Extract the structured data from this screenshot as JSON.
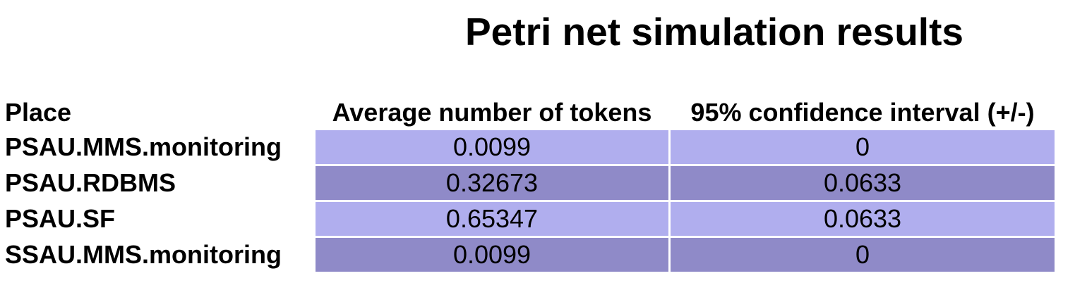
{
  "title": "Petri net simulation results",
  "table": {
    "headers": {
      "place": "Place",
      "average": "Average number of tokens",
      "confidence": "95% confidence interval (+/-)"
    },
    "rows": [
      {
        "place": "PSAU.MMS.monitoring",
        "average": "0.0099",
        "confidence": "0"
      },
      {
        "place": "PSAU.RDBMS",
        "average": "0.32673",
        "confidence": "0.0633"
      },
      {
        "place": "PSAU.SF",
        "average": "0.65347",
        "confidence": "0.0633"
      },
      {
        "place": "SSAU.MMS.monitoring",
        "average": "0.0099",
        "confidence": "0"
      }
    ]
  },
  "colors": {
    "row_light": "#b0aeee",
    "row_dark": "#8f8ac8"
  }
}
